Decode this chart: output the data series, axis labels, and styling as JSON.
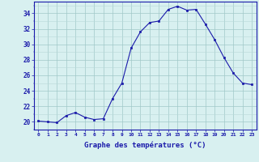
{
  "hours": [
    0,
    1,
    2,
    3,
    4,
    5,
    6,
    7,
    8,
    9,
    10,
    11,
    12,
    13,
    14,
    15,
    16,
    17,
    18,
    19,
    20,
    21,
    22,
    23
  ],
  "temps": [
    20.1,
    20.0,
    19.9,
    20.8,
    21.2,
    20.6,
    20.3,
    20.4,
    23.0,
    25.0,
    29.5,
    31.6,
    32.8,
    33.0,
    34.5,
    34.9,
    34.4,
    34.5,
    32.6,
    30.6,
    28.3,
    26.3,
    25.0,
    24.8
  ],
  "line_color": "#1a1aaa",
  "marker": "s",
  "marker_size": 2,
  "bg_color": "#d8f0f0",
  "grid_major_color": "#a0c8c8",
  "grid_minor_color": "#b8d8d8",
  "axis_color": "#1a1aaa",
  "xlabel": "Graphe des températures (°C)",
  "ylim": [
    19,
    35.5
  ],
  "yticks": [
    20,
    22,
    24,
    26,
    28,
    30,
    32,
    34
  ],
  "xlim": [
    -0.5,
    23.5
  ],
  "xticks": [
    0,
    1,
    2,
    3,
    4,
    5,
    6,
    7,
    8,
    9,
    10,
    11,
    12,
    13,
    14,
    15,
    16,
    17,
    18,
    19,
    20,
    21,
    22,
    23
  ]
}
